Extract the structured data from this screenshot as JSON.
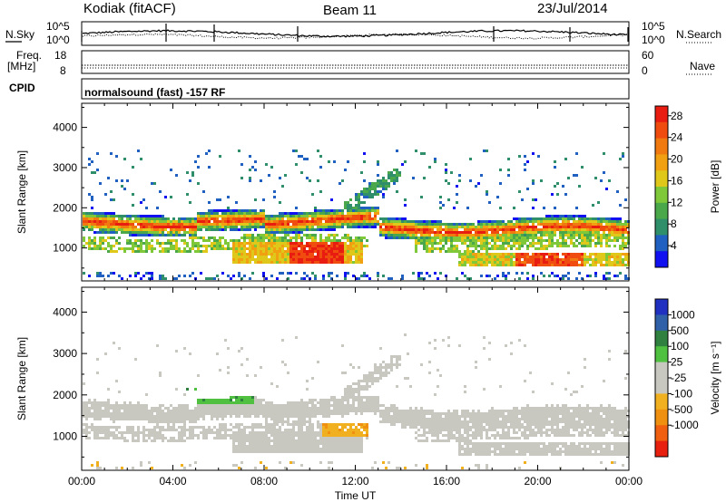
{
  "header": {
    "station": "Kodiak (fitACF)",
    "beam": "Beam 11",
    "date": "23/Jul/2014"
  },
  "strips": {
    "nsky": {
      "label": "N.Sky",
      "left_ticks": [
        "10^5",
        "10^0"
      ],
      "right_ticks": [
        "10^5",
        "10^0"
      ],
      "right_label": "N.Search"
    },
    "freq": {
      "label_line1": "Freq.",
      "label_line2": "[MHz]",
      "left_ticks": [
        "18",
        "8"
      ],
      "right_ticks": [
        "60",
        "0"
      ],
      "right_label": "Nave"
    },
    "cpid": {
      "label": "CPID",
      "text": "normalsound (fast) -157 RF"
    }
  },
  "chart_data": [
    {
      "type": "heatmap",
      "name": "power",
      "ylabel": "Slant Range [km]",
      "xlabel": "Time UT",
      "x_ticks": [
        "00:00",
        "04:00",
        "08:00",
        "12:00",
        "16:00",
        "20:00",
        "00:00"
      ],
      "xlim_hours": [
        0,
        24
      ],
      "y_ticks": [
        1000,
        2000,
        3000,
        4000
      ],
      "ylim": [
        180,
        4600
      ],
      "colorbar": {
        "label": "Power [dB]",
        "ticks": [
          "4",
          "8",
          "12",
          "16",
          "20",
          "24",
          "28"
        ],
        "colors": [
          "#1010f0",
          "#2060c0",
          "#2f8f6a",
          "#4aa84a",
          "#7fc83a",
          "#e0c81a",
          "#f0a010",
          "#f07a10",
          "#f04c10",
          "#e81c10"
        ]
      }
    },
    {
      "type": "heatmap",
      "name": "velocity",
      "ylabel": "Slant Range [km]",
      "xlabel": "Time UT",
      "x_ticks": [
        "00:00",
        "04:00",
        "08:00",
        "12:00",
        "16:00",
        "20:00",
        "00:00"
      ],
      "xlim_hours": [
        0,
        24
      ],
      "y_ticks": [
        1000,
        2000,
        3000,
        4000
      ],
      "ylim": [
        180,
        4600
      ],
      "colorbar": {
        "label": "Velocity [m s⁻¹]",
        "ticks": [
          "1000",
          "500",
          "100",
          "25",
          "-25",
          "-100",
          "-500",
          "-1000"
        ],
        "colors": [
          "#2030c0",
          "#3060a8",
          "#308040",
          "#50c040",
          "#c8c8c0",
          "#c8c8c0",
          "#f0b020",
          "#f09010",
          "#f06010",
          "#e82010"
        ]
      }
    }
  ]
}
